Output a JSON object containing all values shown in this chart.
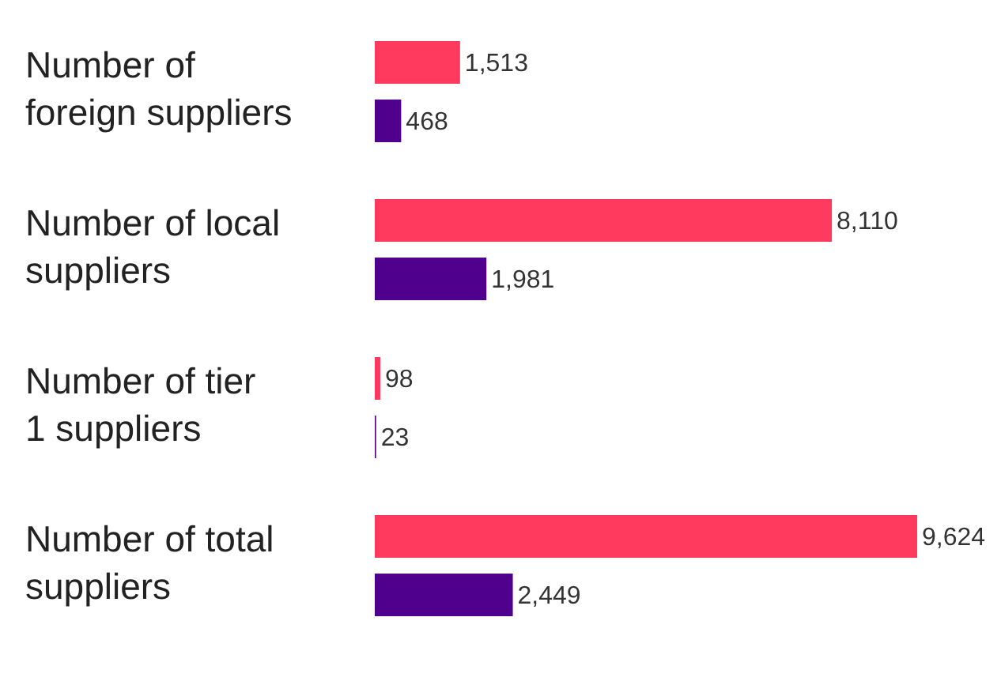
{
  "chart_data": {
    "type": "bar",
    "orientation": "horizontal",
    "categories": [
      "Number of foreign suppliers",
      "Number of local suppliers",
      "Number of tier 1 suppliers",
      "Number of total suppliers"
    ],
    "series": [
      {
        "color": "#ff3a5e",
        "values": [
          1513,
          8110,
          98,
          9624
        ],
        "value_labels": [
          "1,513",
          "8,110",
          "98",
          "9,624"
        ]
      },
      {
        "color": "#4f008c",
        "values": [
          468,
          1981,
          23,
          2449
        ],
        "value_labels": [
          "468",
          "1,981",
          "23",
          "2,449"
        ]
      }
    ],
    "grid": false,
    "legend": false
  }
}
